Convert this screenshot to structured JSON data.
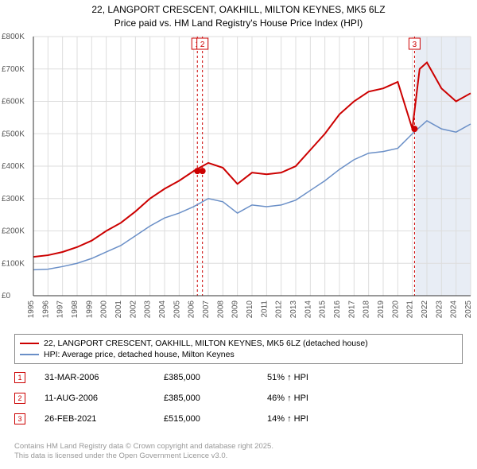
{
  "title_line1": "22, LANGPORT CRESCENT, OAKHILL, MILTON KEYNES, MK5 6LZ",
  "title_line2": "Price paid vs. HM Land Registry's House Price Index (HPI)",
  "chart": {
    "type": "line",
    "x_years": [
      1995,
      1996,
      1997,
      1998,
      1999,
      2000,
      2001,
      2002,
      2003,
      2004,
      2005,
      2006,
      2007,
      2008,
      2009,
      2010,
      2011,
      2012,
      2013,
      2014,
      2015,
      2016,
      2017,
      2018,
      2019,
      2020,
      2021,
      2022,
      2023,
      2024,
      2025
    ],
    "ylim": [
      0,
      800
    ],
    "ytick_step": 100,
    "ytick_labels": [
      "£0",
      "£100K",
      "£200K",
      "£300K",
      "£400K",
      "£500K",
      "£600K",
      "£700K",
      "£800K"
    ],
    "grid_color": "#dddddd",
    "background_color": "#ffffff",
    "forecast_band": {
      "start_year": 2021.2,
      "end_year": 2025,
      "color": "#e8edf5"
    },
    "series": [
      {
        "name": "property",
        "color": "#cc0000",
        "width": 2,
        "points": [
          [
            1995,
            120
          ],
          [
            1996,
            125
          ],
          [
            1997,
            135
          ],
          [
            1998,
            150
          ],
          [
            1999,
            170
          ],
          [
            2000,
            200
          ],
          [
            2001,
            225
          ],
          [
            2002,
            260
          ],
          [
            2003,
            300
          ],
          [
            2004,
            330
          ],
          [
            2005,
            355
          ],
          [
            2006,
            385
          ],
          [
            2007,
            410
          ],
          [
            2008,
            395
          ],
          [
            2009,
            345
          ],
          [
            2010,
            380
          ],
          [
            2011,
            375
          ],
          [
            2012,
            380
          ],
          [
            2013,
            400
          ],
          [
            2014,
            450
          ],
          [
            2015,
            500
          ],
          [
            2016,
            560
          ],
          [
            2017,
            600
          ],
          [
            2018,
            630
          ],
          [
            2019,
            640
          ],
          [
            2020,
            660
          ],
          [
            2021,
            515
          ],
          [
            2021.5,
            700
          ],
          [
            2022,
            720
          ],
          [
            2023,
            640
          ],
          [
            2024,
            600
          ],
          [
            2025,
            625
          ]
        ]
      },
      {
        "name": "hpi",
        "color": "#6a8fc7",
        "width": 1.5,
        "points": [
          [
            1995,
            80
          ],
          [
            1996,
            82
          ],
          [
            1997,
            90
          ],
          [
            1998,
            100
          ],
          [
            1999,
            115
          ],
          [
            2000,
            135
          ],
          [
            2001,
            155
          ],
          [
            2002,
            185
          ],
          [
            2003,
            215
          ],
          [
            2004,
            240
          ],
          [
            2005,
            255
          ],
          [
            2006,
            275
          ],
          [
            2007,
            300
          ],
          [
            2008,
            290
          ],
          [
            2009,
            255
          ],
          [
            2010,
            280
          ],
          [
            2011,
            275
          ],
          [
            2012,
            280
          ],
          [
            2013,
            295
          ],
          [
            2014,
            325
          ],
          [
            2015,
            355
          ],
          [
            2016,
            390
          ],
          [
            2017,
            420
          ],
          [
            2018,
            440
          ],
          [
            2019,
            445
          ],
          [
            2020,
            455
          ],
          [
            2021,
            500
          ],
          [
            2022,
            540
          ],
          [
            2023,
            515
          ],
          [
            2024,
            505
          ],
          [
            2025,
            530
          ]
        ]
      }
    ],
    "sale_markers": [
      {
        "n": "1",
        "year": 2006.25,
        "price": 385
      },
      {
        "n": "2",
        "year": 2006.6,
        "price": 385
      },
      {
        "n": "3",
        "year": 2021.15,
        "price": 515
      }
    ],
    "marker_color": "#cc0000"
  },
  "legend": [
    {
      "color": "#cc0000",
      "width": 2,
      "label": "22, LANGPORT CRESCENT, OAKHILL, MILTON KEYNES, MK5 6LZ (detached house)"
    },
    {
      "color": "#6a8fc7",
      "width": 1.5,
      "label": "HPI: Average price, detached house, Milton Keynes"
    }
  ],
  "sales": [
    {
      "n": "1",
      "date": "31-MAR-2006",
      "price": "£385,000",
      "pct": "51% ↑ HPI"
    },
    {
      "n": "2",
      "date": "11-AUG-2006",
      "price": "£385,000",
      "pct": "46% ↑ HPI"
    },
    {
      "n": "3",
      "date": "26-FEB-2021",
      "price": "£515,000",
      "pct": "14% ↑ HPI"
    }
  ],
  "footnote_line1": "Contains HM Land Registry data © Crown copyright and database right 2025.",
  "footnote_line2": "This data is licensed under the Open Government Licence v3.0."
}
